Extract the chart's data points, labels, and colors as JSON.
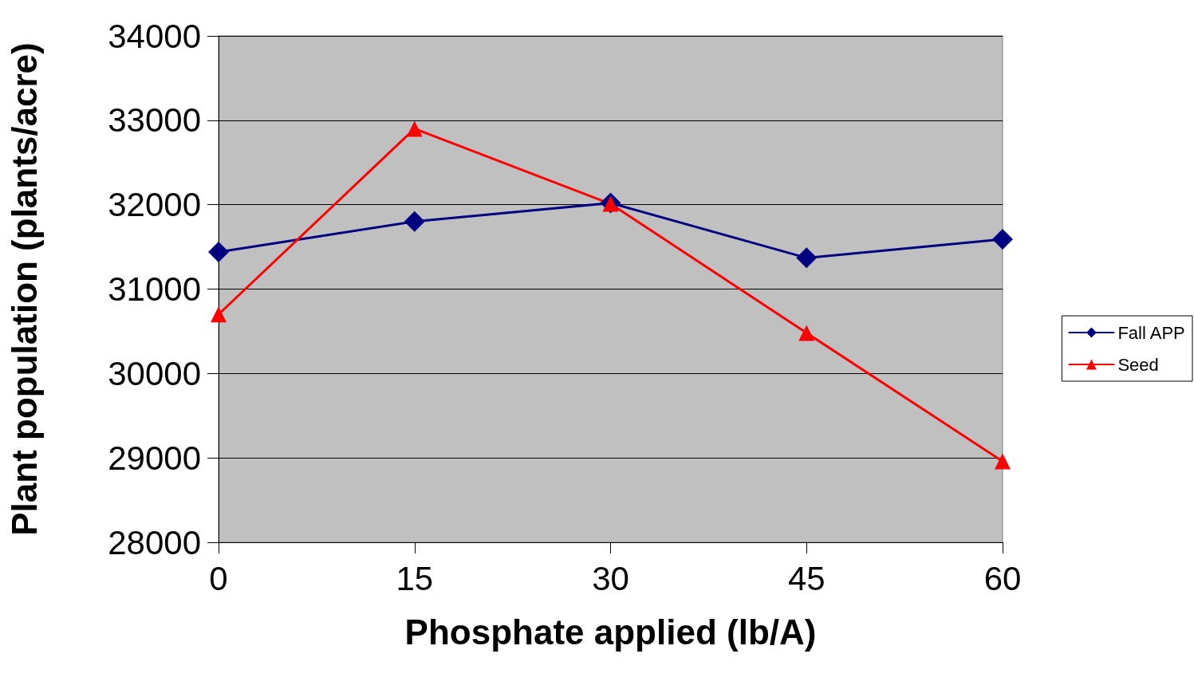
{
  "chart_data": {
    "type": "line",
    "xlabel": "Phosphate applied (lb/A)",
    "ylabel": "Plant population (plants/acre)",
    "x": [
      0,
      15,
      30,
      45,
      60
    ],
    "series": [
      {
        "name": "Fall APP",
        "color": "#000080",
        "marker": "diamond",
        "values": [
          31440,
          31800,
          32020,
          31370,
          31590
        ]
      },
      {
        "name": "Seed",
        "color": "#ff0000",
        "marker": "triangle",
        "values": [
          30700,
          32900,
          32010,
          30480,
          28960
        ]
      }
    ],
    "xlim": [
      0,
      60
    ],
    "xticks": [
      0,
      15,
      30,
      45,
      60
    ],
    "ylim": [
      28000,
      34000
    ],
    "yticks": [
      28000,
      29000,
      30000,
      31000,
      32000,
      33000,
      34000
    ],
    "grid": "y",
    "legend": "right",
    "line_style": "solid"
  }
}
